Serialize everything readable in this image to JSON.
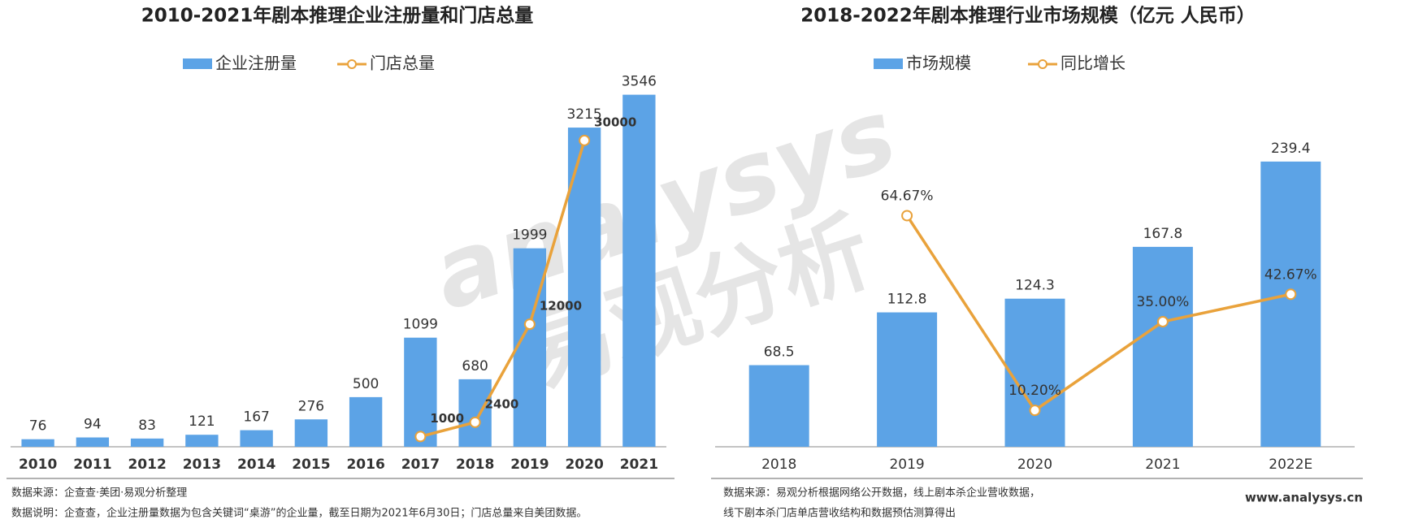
{
  "chart_data": [
    {
      "type": "bar",
      "title": "2010-2021年剧本推理企业注册量和门店总量",
      "categories": [
        "2010",
        "2011",
        "2012",
        "2013",
        "2014",
        "2015",
        "2016",
        "2017",
        "2018",
        "2019",
        "2020",
        "2021"
      ],
      "series": [
        {
          "name": "企业注册量",
          "type": "bar",
          "color": "#5ca3e6",
          "values": [
            76,
            94,
            83,
            121,
            167,
            276,
            500,
            1099,
            680,
            1999,
            3215,
            3546
          ]
        },
        {
          "name": "门店总量",
          "type": "line",
          "axis": "y2",
          "color": "#e9a23b",
          "values": [
            null,
            null,
            null,
            null,
            null,
            null,
            null,
            1000,
            2400,
            12000,
            30000,
            null
          ]
        }
      ],
      "ylim": [
        0,
        3600
      ],
      "y2lim": [
        0,
        35000
      ],
      "notes": [
        "数据来源：企查查·美团·易观分析整理",
        "数据说明：企查查，企业注册量数据为包含关键词“桌游”的企业量，截至日期为2021年6月30日；门店总量来自美团数据。"
      ]
    },
    {
      "type": "bar",
      "title": "2018-2022年剧本推理行业市场规模（亿元 人民币）",
      "categories": [
        "2018",
        "2019",
        "2020",
        "2021",
        "2022E"
      ],
      "series": [
        {
          "name": "市场规模",
          "type": "bar",
          "color": "#5ca3e6",
          "values": [
            68.5,
            112.8,
            124.3,
            167.8,
            239.4
          ]
        },
        {
          "name": "同比增长",
          "type": "line",
          "axis": "y2",
          "color": "#e9a23b",
          "values": [
            null,
            64.67,
            10.2,
            35.0,
            42.67
          ],
          "value_labels": [
            null,
            "64.67%",
            "10.20%",
            "35.00%",
            "42.67%"
          ]
        }
      ],
      "ylim": [
        0,
        300
      ],
      "y2lim": [
        0,
        100
      ],
      "notes": [
        "数据来源：易观分析根据网络公开数据，线上剧本杀企业营收数据，",
        "线下剧本杀门店单店营收结构和数据预估测算得出"
      ],
      "source": "www.analysys.cn"
    }
  ],
  "watermark": [
    "analysys",
    "易观分析"
  ]
}
